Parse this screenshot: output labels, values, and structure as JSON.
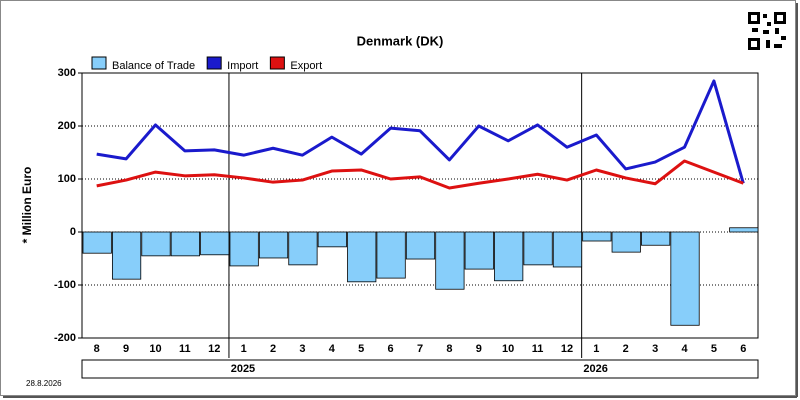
{
  "chart_data": {
    "type": "bar",
    "title": "Denmark (DK)",
    "y_label": "* Million Euro",
    "footnote": "28.8.2026",
    "categories": [
      "8",
      "9",
      "10",
      "11",
      "12",
      "1",
      "2",
      "3",
      "4",
      "5",
      "6",
      "7",
      "8",
      "9",
      "10",
      "11",
      "12",
      "1",
      "2",
      "3",
      "4",
      "5",
      "6"
    ],
    "year_labels": [
      "2025",
      "2026"
    ],
    "series": [
      {
        "name": "Balance of Trade",
        "type": "bar",
        "color": "#87cefa",
        "values": [
          -40,
          -89,
          -45,
          -45,
          -43,
          -64,
          -49,
          -62,
          -28,
          -94,
          -87,
          -51,
          -108,
          -70,
          -92,
          -62,
          -66,
          -17,
          -38,
          -25,
          -176,
          0,
          8
        ]
      },
      {
        "name": "Import",
        "type": "line",
        "color": "#1a1acc",
        "values": [
          147,
          138,
          202,
          153,
          155,
          145,
          158,
          145,
          179,
          147,
          196,
          191,
          136,
          200,
          172,
          202,
          160,
          183,
          119,
          132,
          160,
          285,
          92
        ]
      },
      {
        "name": "Export",
        "type": "line",
        "color": "#dd1111",
        "values": [
          87,
          98,
          113,
          106,
          108,
          102,
          94,
          98,
          115,
          117,
          100,
          104,
          83,
          92,
          100,
          109,
          98,
          117,
          102,
          91,
          134,
          113,
          92
        ]
      }
    ],
    "ylim": [
      -200,
      300
    ],
    "yticks": [
      -200,
      -100,
      0,
      100,
      200,
      300
    ],
    "grid": true
  }
}
